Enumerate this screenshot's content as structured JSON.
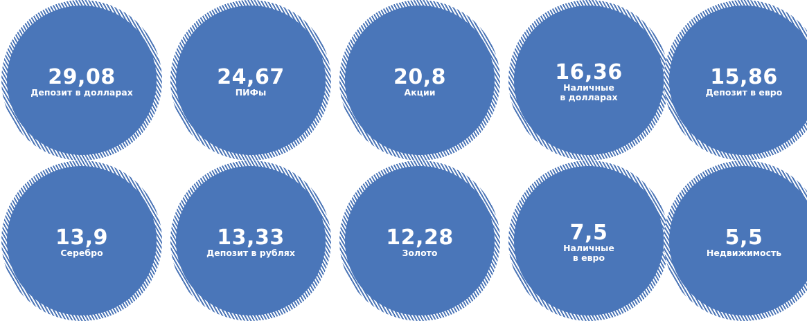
{
  "items": [
    {
      "value": "29,08",
      "label": "Депозит в долларах"
    },
    {
      "value": "24,67",
      "label": "ПИФы"
    },
    {
      "value": "20,8",
      "label": "Акции"
    },
    {
      "value": "16,36",
      "label": "Наличные\nв долларах"
    },
    {
      "value": "15,86",
      "label": "Депозит в евро"
    },
    {
      "value": "13,9",
      "label": "Серебро"
    },
    {
      "value": "13,33",
      "label": "Депозит в рублях"
    },
    {
      "value": "12,28",
      "label": "Золото"
    },
    {
      "value": "7,5",
      "label": "Наличные\nв евро"
    },
    {
      "value": "5,5",
      "label": "Недвижимость"
    }
  ],
  "colors": {
    "circle_fill": "#4a76b9",
    "hatch": "#4a74b6",
    "text": "#ffffff"
  }
}
